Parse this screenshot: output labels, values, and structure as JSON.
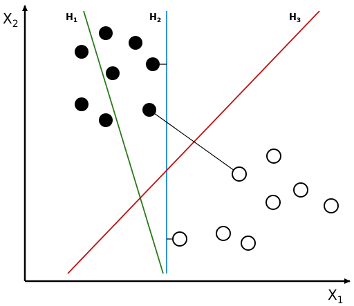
{
  "axes": {
    "x": {
      "label": "X",
      "subscript": "1"
    },
    "y": {
      "label": "X",
      "subscript": "2"
    }
  },
  "hyperplanes": [
    {
      "label": "H",
      "subscript": "1",
      "color": "#2a7a1a"
    },
    {
      "label": "H",
      "subscript": "2",
      "color": "#1a8ad4"
    },
    {
      "label": "H",
      "subscript": "3",
      "color": "#c01010"
    }
  ]
}
